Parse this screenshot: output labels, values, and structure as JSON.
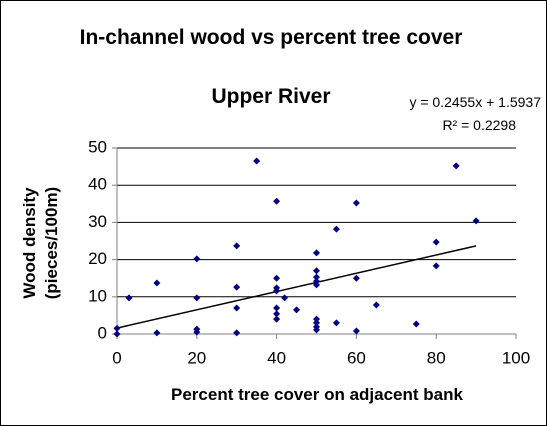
{
  "chart_data": {
    "type": "scatter",
    "title": "In-channel wood vs percent tree cover",
    "subtitle": "Upper River",
    "xlabel": "Percent tree cover on adjacent bank",
    "ylabel": "Wood density (pieces/100m)",
    "annotations": {
      "equation": "y = 0.2455x + 1.5937",
      "r_squared": "R² = 0.2298"
    },
    "trendline": {
      "slope": 0.2455,
      "intercept": 1.5937,
      "x_range": [
        0,
        90
      ]
    },
    "color": "#000080",
    "x": [
      0,
      0,
      3,
      10,
      10,
      20,
      20,
      20,
      20,
      30,
      30,
      30,
      30,
      35,
      40,
      40,
      40,
      40,
      40,
      40,
      40,
      42,
      45,
      50,
      50,
      50,
      50,
      50,
      50,
      50,
      50,
      50,
      55,
      55,
      60,
      60,
      60,
      65,
      75,
      80,
      80,
      85,
      90
    ],
    "values": [
      0,
      1.5,
      9.7,
      13.7,
      0.3,
      20.2,
      9.7,
      1.3,
      0.5,
      23.7,
      12.6,
      7,
      0.3,
      46.5,
      35.7,
      15,
      12.4,
      11.6,
      7,
      5.4,
      4,
      9.7,
      6.5,
      21.8,
      17,
      15.3,
      14.2,
      13.2,
      4,
      3,
      1.9,
      1.1,
      28.2,
      3,
      35.2,
      15,
      0.8,
      7.8,
      2.7,
      24.7,
      18.3,
      45.2,
      30.4
    ],
    "xlim": [
      0,
      100
    ],
    "xticks": [
      0,
      20,
      40,
      60,
      80,
      100
    ],
    "ylim": [
      0,
      50
    ],
    "yticks": [
      0,
      10,
      20,
      30,
      40,
      50
    ],
    "grid": true
  }
}
